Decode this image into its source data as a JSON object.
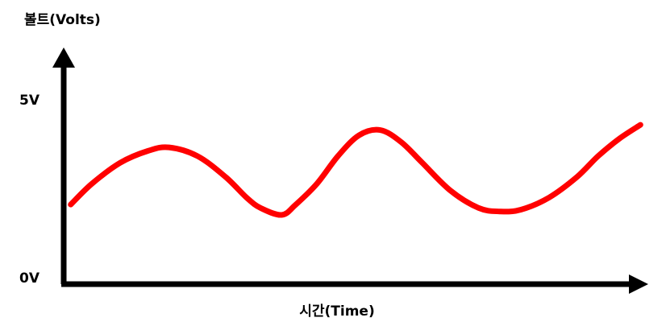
{
  "chart_data": {
    "type": "line",
    "ylabel": "볼트(Volts)",
    "xlabel": "시간(Time)",
    "y_ticks": [
      {
        "label": "5V",
        "value": 5
      },
      {
        "label": "0V",
        "value": 0
      }
    ],
    "ylim": [
      0,
      6.3
    ],
    "xlim": [
      0,
      8.3
    ],
    "line_color": "#ff0000",
    "series": [
      {
        "x": [
          0.1,
          0.4,
          0.8,
          1.2,
          1.5,
          1.9,
          2.3,
          2.6,
          2.8,
          3.1,
          3.3,
          3.6,
          3.9,
          4.2,
          4.5,
          4.8,
          5.1,
          5.5,
          5.9,
          6.2,
          6.5,
          6.9,
          7.3,
          7.6,
          7.9,
          8.2
        ],
        "y": [
          2.3,
          2.9,
          3.5,
          3.85,
          3.95,
          3.7,
          3.1,
          2.5,
          2.2,
          2.0,
          2.3,
          2.9,
          3.7,
          4.3,
          4.45,
          4.1,
          3.5,
          2.7,
          2.2,
          2.1,
          2.15,
          2.5,
          3.1,
          3.7,
          4.2,
          4.6
        ]
      }
    ]
  }
}
